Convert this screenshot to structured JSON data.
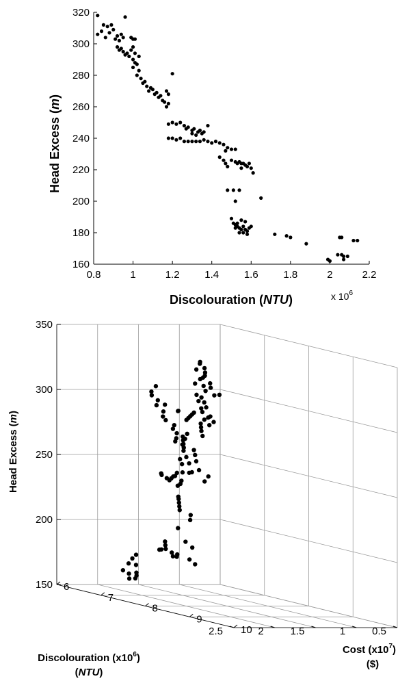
{
  "chart_data": [
    {
      "type": "scatter",
      "xlabel": "Discolouration (NTU)",
      "xlabel_parts": [
        "Discolouration (",
        "NTU",
        ")"
      ],
      "ylabel": "Head Excess (m)",
      "ylabel_parts": [
        "Head Excess (",
        "m",
        ")"
      ],
      "x_multiplier": "x 10^6",
      "x_multiplier_parts": [
        "x 10",
        "6"
      ],
      "xlim": [
        0.8,
        2.2
      ],
      "ylim": [
        160,
        320
      ],
      "x_ticks": [
        "0.8",
        "1",
        "1.2",
        "1.4",
        "1.6",
        "1.8",
        "2",
        "2.2"
      ],
      "y_ticks": [
        "160",
        "180",
        "200",
        "220",
        "240",
        "260",
        "280",
        "300",
        "320"
      ],
      "grid": false,
      "points": [
        [
          0.82,
          318
        ],
        [
          0.96,
          317
        ],
        [
          0.82,
          306
        ],
        [
          0.84,
          308
        ],
        [
          0.85,
          312
        ],
        [
          0.86,
          304
        ],
        [
          0.87,
          311
        ],
        [
          0.88,
          307
        ],
        [
          0.89,
          312
        ],
        [
          0.9,
          309
        ],
        [
          0.91,
          303
        ],
        [
          0.92,
          305
        ],
        [
          0.93,
          302
        ],
        [
          0.94,
          306
        ],
        [
          0.95,
          304
        ],
        [
          0.92,
          298
        ],
        [
          0.93,
          296
        ],
        [
          0.94,
          297
        ],
        [
          0.95,
          295
        ],
        [
          0.96,
          293
        ],
        [
          0.97,
          294
        ],
        [
          0.98,
          292
        ],
        [
          0.99,
          304
        ],
        [
          1.0,
          303
        ],
        [
          1.01,
          303
        ],
        [
          0.99,
          296
        ],
        [
          1.0,
          290
        ],
        [
          1.01,
          288
        ],
        [
          1.0,
          285
        ],
        [
          1.02,
          287
        ],
        [
          1.03,
          283
        ],
        [
          1.02,
          280
        ],
        [
          1.04,
          278
        ],
        [
          1.03,
          292
        ],
        [
          1.01,
          294
        ],
        [
          1.0,
          298
        ],
        [
          1.05,
          275
        ],
        [
          1.06,
          276
        ],
        [
          1.07,
          273
        ],
        [
          1.08,
          270
        ],
        [
          1.09,
          272
        ],
        [
          1.1,
          271
        ],
        [
          1.11,
          268
        ],
        [
          1.12,
          269
        ],
        [
          1.13,
          266
        ],
        [
          1.14,
          267
        ],
        [
          1.15,
          264
        ],
        [
          1.16,
          263
        ],
        [
          1.17,
          260
        ],
        [
          1.18,
          262
        ],
        [
          1.18,
          268
        ],
        [
          1.17,
          270
        ],
        [
          1.2,
          281
        ],
        [
          1.18,
          249
        ],
        [
          1.2,
          250
        ],
        [
          1.22,
          249
        ],
        [
          1.24,
          250
        ],
        [
          1.26,
          248
        ],
        [
          1.27,
          246
        ],
        [
          1.28,
          247
        ],
        [
          1.3,
          245
        ],
        [
          1.31,
          246
        ],
        [
          1.33,
          244
        ],
        [
          1.34,
          245
        ],
        [
          1.36,
          244
        ],
        [
          1.38,
          248
        ],
        [
          1.3,
          243
        ],
        [
          1.32,
          242
        ],
        [
          1.35,
          243
        ],
        [
          1.18,
          240
        ],
        [
          1.2,
          240
        ],
        [
          1.22,
          239
        ],
        [
          1.24,
          240
        ],
        [
          1.26,
          238
        ],
        [
          1.28,
          238
        ],
        [
          1.3,
          238
        ],
        [
          1.32,
          238
        ],
        [
          1.34,
          238
        ],
        [
          1.36,
          239
        ],
        [
          1.38,
          238
        ],
        [
          1.4,
          237
        ],
        [
          1.42,
          238
        ],
        [
          1.44,
          237
        ],
        [
          1.46,
          236
        ],
        [
          1.48,
          234
        ],
        [
          1.5,
          233
        ],
        [
          1.52,
          233
        ],
        [
          1.47,
          232
        ],
        [
          1.44,
          228
        ],
        [
          1.46,
          226
        ],
        [
          1.47,
          224
        ],
        [
          1.48,
          222
        ],
        [
          1.5,
          226
        ],
        [
          1.52,
          225
        ],
        [
          1.53,
          224
        ],
        [
          1.54,
          225
        ],
        [
          1.55,
          224
        ],
        [
          1.56,
          224
        ],
        [
          1.57,
          223
        ],
        [
          1.58,
          222
        ],
        [
          1.59,
          224
        ],
        [
          1.6,
          221
        ],
        [
          1.61,
          218
        ],
        [
          1.55,
          221
        ],
        [
          1.48,
          207
        ],
        [
          1.51,
          207
        ],
        [
          1.54,
          207
        ],
        [
          1.52,
          200
        ],
        [
          1.65,
          202
        ],
        [
          1.5,
          189
        ],
        [
          1.51,
          186
        ],
        [
          1.52,
          185
        ],
        [
          1.53,
          184
        ],
        [
          1.54,
          183
        ],
        [
          1.55,
          182
        ],
        [
          1.56,
          184
        ],
        [
          1.57,
          182
        ],
        [
          1.58,
          181
        ],
        [
          1.59,
          183
        ],
        [
          1.6,
          184
        ],
        [
          1.54,
          180
        ],
        [
          1.56,
          180
        ],
        [
          1.58,
          179
        ],
        [
          1.55,
          188
        ],
        [
          1.57,
          187
        ],
        [
          1.53,
          186
        ],
        [
          1.52,
          183
        ],
        [
          1.72,
          179
        ],
        [
          1.78,
          178
        ],
        [
          1.8,
          177
        ],
        [
          1.88,
          173
        ],
        [
          1.99,
          163
        ],
        [
          2.0,
          162
        ],
        [
          2.04,
          166
        ],
        [
          2.05,
          177
        ],
        [
          2.06,
          177
        ],
        [
          2.06,
          166
        ],
        [
          2.07,
          163
        ],
        [
          2.09,
          165
        ],
        [
          2.12,
          175
        ],
        [
          2.14,
          175
        ],
        [
          2.07,
          165
        ]
      ]
    },
    {
      "type": "scatter",
      "projection": "3d",
      "xlabel": "Discolouration (x10^6) (NTU)",
      "xlabel_parts": [
        "Discolouration (x10",
        "6",
        ")",
        "NTU"
      ],
      "ylabel": "Cost (x10^7) ($)",
      "ylabel_parts": [
        "Cost (x10",
        "7",
        ")",
        "($)"
      ],
      "zlabel": "Head Excess (m)",
      "zlabel_parts": [
        "Head Excess (",
        "m",
        ")"
      ],
      "xlim": [
        0.5,
        2.5
      ],
      "ylim": [
        6,
        10
      ],
      "zlim": [
        150,
        350
      ],
      "x_ticks": [
        "0.5",
        "1",
        "1.5",
        "2",
        "2.5"
      ],
      "y_ticks": [
        "6",
        "7",
        "8",
        "9",
        "10"
      ],
      "z_ticks": [
        "150",
        "200",
        "250",
        "300",
        "350"
      ],
      "grid": true,
      "points": [
        [
          0.8,
          6.2,
          318
        ],
        [
          0.82,
          6.25,
          315
        ],
        [
          0.85,
          6.3,
          313
        ],
        [
          0.88,
          6.25,
          310
        ],
        [
          0.9,
          6.35,
          312
        ],
        [
          0.84,
          6.4,
          308
        ],
        [
          0.86,
          6.45,
          305
        ],
        [
          0.92,
          6.4,
          306
        ],
        [
          0.95,
          6.5,
          303
        ],
        [
          0.97,
          6.3,
          307
        ],
        [
          0.78,
          6.5,
          300
        ],
        [
          0.8,
          6.1,
          322
        ],
        [
          0.83,
          6.15,
          321
        ],
        [
          0.9,
          6.2,
          317
        ],
        [
          0.87,
          6.55,
          300
        ],
        [
          1.0,
          6.5,
          298
        ],
        [
          1.02,
          6.6,
          295
        ],
        [
          1.05,
          6.7,
          292
        ],
        [
          1.03,
          6.55,
          290
        ],
        [
          1.07,
          6.65,
          288
        ],
        [
          1.08,
          6.8,
          285
        ],
        [
          1.1,
          6.75,
          283
        ],
        [
          1.0,
          6.7,
          285
        ],
        [
          1.04,
          6.85,
          282
        ],
        [
          1.12,
          6.9,
          280
        ],
        [
          1.06,
          6.5,
          300
        ],
        [
          1.09,
          6.6,
          296
        ],
        [
          1.2,
          6.7,
          288
        ],
        [
          1.25,
          6.75,
          287
        ],
        [
          1.3,
          6.8,
          286
        ],
        [
          1.35,
          6.85,
          285
        ],
        [
          1.4,
          6.9,
          284
        ],
        [
          1.28,
          7.0,
          282
        ],
        [
          1.33,
          7.1,
          280
        ],
        [
          1.38,
          7.2,
          278
        ],
        [
          1.45,
          6.8,
          290
        ],
        [
          1.5,
          6.9,
          291
        ],
        [
          1.42,
          7.3,
          275
        ],
        [
          1.45,
          6.2,
          300
        ],
        [
          1.5,
          6.3,
          298
        ],
        [
          1.48,
          6.4,
          295
        ],
        [
          1.55,
          6.5,
          292
        ],
        [
          1.52,
          6.6,
          288
        ],
        [
          1.58,
          6.7,
          285
        ],
        [
          1.6,
          6.8,
          283
        ],
        [
          1.55,
          6.9,
          280
        ],
        [
          1.62,
          7.0,
          278
        ],
        [
          1.5,
          7.1,
          275
        ],
        [
          1.45,
          6.3,
          305
        ],
        [
          1.42,
          6.45,
          292
        ],
        [
          1.5,
          7.0,
          272
        ],
        [
          1.55,
          7.1,
          270
        ],
        [
          1.6,
          7.2,
          268
        ],
        [
          1.65,
          7.3,
          266
        ],
        [
          1.58,
          7.4,
          265
        ],
        [
          1.62,
          7.5,
          262
        ],
        [
          1.68,
          7.35,
          264
        ],
        [
          1.7,
          7.45,
          260
        ],
        [
          1.66,
          7.6,
          258
        ],
        [
          1.72,
          7.55,
          256
        ],
        [
          1.64,
          7.25,
          268
        ],
        [
          1.6,
          7.05,
          275
        ],
        [
          1.7,
          7.2,
          270
        ],
        [
          1.75,
          7.4,
          258
        ],
        [
          1.68,
          7.7,
          252
        ],
        [
          1.74,
          7.65,
          250
        ],
        [
          1.78,
          7.5,
          255
        ],
        [
          1.62,
          7.8,
          248
        ],
        [
          1.72,
          7.9,
          245
        ],
        [
          1.8,
          7.7,
          250
        ],
        [
          1.66,
          7.15,
          272
        ],
        [
          1.58,
          7.2,
          272
        ],
        [
          1.3,
          6.5,
          240
        ],
        [
          1.35,
          6.55,
          238
        ],
        [
          1.4,
          6.6,
          238
        ],
        [
          1.45,
          6.65,
          237
        ],
        [
          1.5,
          6.7,
          236
        ],
        [
          1.38,
          6.75,
          236
        ],
        [
          1.42,
          6.8,
          234
        ],
        [
          1.48,
          6.85,
          233
        ],
        [
          1.52,
          6.55,
          240
        ],
        [
          1.34,
          6.7,
          242
        ],
        [
          1.46,
          6.45,
          238
        ],
        [
          1.56,
          6.75,
          238
        ],
        [
          1.5,
          6.9,
          225
        ],
        [
          1.55,
          7.0,
          224
        ],
        [
          1.6,
          7.1,
          222
        ],
        [
          1.65,
          7.2,
          220
        ],
        [
          1.7,
          7.3,
          218
        ],
        [
          1.62,
          7.4,
          215
        ],
        [
          1.68,
          7.5,
          212
        ],
        [
          1.45,
          6.8,
          200
        ],
        [
          1.52,
          7.1,
          192
        ],
        [
          1.6,
          7.4,
          190
        ],
        [
          1.5,
          6.6,
          188
        ],
        [
          1.55,
          6.7,
          186
        ],
        [
          1.6,
          6.8,
          184
        ],
        [
          1.58,
          6.9,
          182
        ],
        [
          1.62,
          7.0,
          180
        ],
        [
          1.65,
          6.75,
          183
        ],
        [
          1.54,
          6.95,
          181
        ],
        [
          1.6,
          7.05,
          180
        ],
        [
          1.68,
          6.85,
          184
        ],
        [
          1.58,
          7.3,
          180
        ],
        [
          1.62,
          7.5,
          178
        ],
        [
          1.8,
          6.5,
          177
        ],
        [
          1.9,
          6.6,
          175
        ],
        [
          2.0,
          6.7,
          172
        ],
        [
          2.05,
          6.8,
          165
        ],
        [
          2.1,
          6.9,
          162
        ],
        [
          2.08,
          7.0,
          163
        ],
        [
          2.12,
          7.1,
          166
        ],
        [
          2.15,
          6.85,
          168
        ],
        [
          2.04,
          6.95,
          167
        ],
        [
          2.18,
          7.2,
          175
        ]
      ]
    }
  ]
}
